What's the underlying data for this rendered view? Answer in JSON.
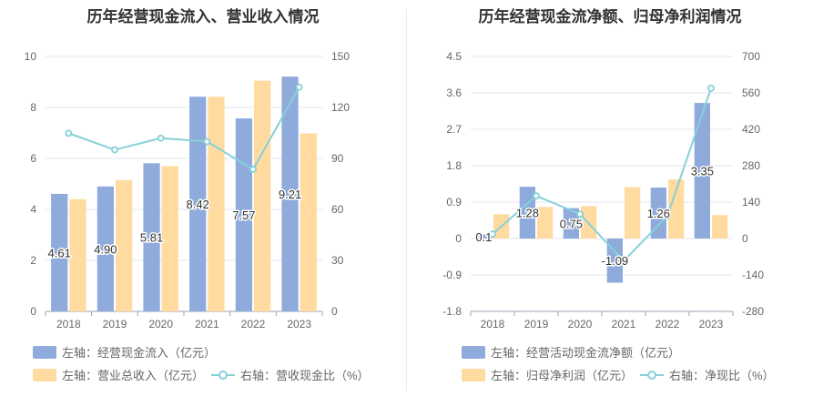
{
  "colors": {
    "bar1": "#8eabdc",
    "bar2": "#ffdba0",
    "line": "#86d1d8",
    "grid": "#e3e6f0",
    "axis": "#999999"
  },
  "left_panel": {
    "title": "历年经营现金流入、营业收入情况",
    "legend": {
      "bar1": "左轴：经营现金流入（亿元）",
      "bar2": "左轴：营业总收入（亿元）",
      "line": "右轴：营收现金比（%）"
    }
  },
  "right_panel": {
    "title": "历年经营现金流净额、归母净利润情况",
    "legend": {
      "bar1": "左轴：经营活动现金流净额（亿元）",
      "bar2": "左轴：归母净利润（亿元）",
      "line": "右轴：净现比（%）"
    }
  },
  "chart_data": [
    {
      "type": "bar",
      "title": "历年经营现金流入、营业收入情况",
      "categories": [
        "2018",
        "2019",
        "2020",
        "2021",
        "2022",
        "2023"
      ],
      "ylim": [
        0,
        10
      ],
      "y_ticks": [
        "0",
        "2",
        "4",
        "6",
        "8",
        "10"
      ],
      "y2lim": [
        0,
        150
      ],
      "y2_ticks": [
        "0",
        "30",
        "60",
        "90",
        "120",
        "150"
      ],
      "series": [
        {
          "name": "左轴：经营现金流入（亿元）",
          "axis": "left",
          "kind": "bar",
          "values": [
            4.61,
            4.9,
            5.81,
            8.42,
            7.57,
            9.21
          ],
          "labels": [
            "4.61",
            "4.90",
            "5.81",
            "8.42",
            "7.57",
            "9.21"
          ]
        },
        {
          "name": "左轴：营业总收入（亿元）",
          "axis": "left",
          "kind": "bar",
          "values": [
            4.4,
            5.15,
            5.7,
            8.42,
            9.05,
            6.98
          ]
        },
        {
          "name": "右轴：营收现金比（%）",
          "axis": "right",
          "kind": "line",
          "values": [
            104.8,
            95.1,
            101.9,
            99.9,
            83.6,
            131.9
          ]
        }
      ],
      "grid": true,
      "legend_position": "bottom-left"
    },
    {
      "type": "bar",
      "title": "历年经营现金流净额、归母净利润情况",
      "categories": [
        "2018",
        "2019",
        "2020",
        "2021",
        "2022",
        "2023"
      ],
      "ylim": [
        -1.8,
        4.5
      ],
      "y_ticks": [
        "-1.8",
        "-0.9",
        "0",
        "0.9",
        "1.8",
        "2.7",
        "3.6",
        "4.5"
      ],
      "y2lim": [
        -280,
        700
      ],
      "y2_ticks": [
        "-280",
        "-140",
        "0",
        "140",
        "280",
        "420",
        "560",
        "700"
      ],
      "series": [
        {
          "name": "左轴：经营活动现金流净额（亿元）",
          "axis": "left",
          "kind": "bar",
          "values": [
            0.1,
            1.28,
            0.75,
            -1.09,
            1.26,
            3.35
          ],
          "labels": [
            "0.1",
            "1.28",
            "0.75",
            "-1.09",
            "1.26",
            "3.35"
          ]
        },
        {
          "name": "左轴：归母净利润（亿元）",
          "axis": "left",
          "kind": "bar",
          "values": [
            0.6,
            0.78,
            0.8,
            1.27,
            1.46,
            0.58
          ]
        },
        {
          "name": "右轴：净现比（%）",
          "axis": "right",
          "kind": "line",
          "values": [
            17,
            164,
            94,
            -86,
            86,
            578
          ]
        }
      ],
      "grid": true,
      "legend_position": "bottom-left"
    }
  ]
}
